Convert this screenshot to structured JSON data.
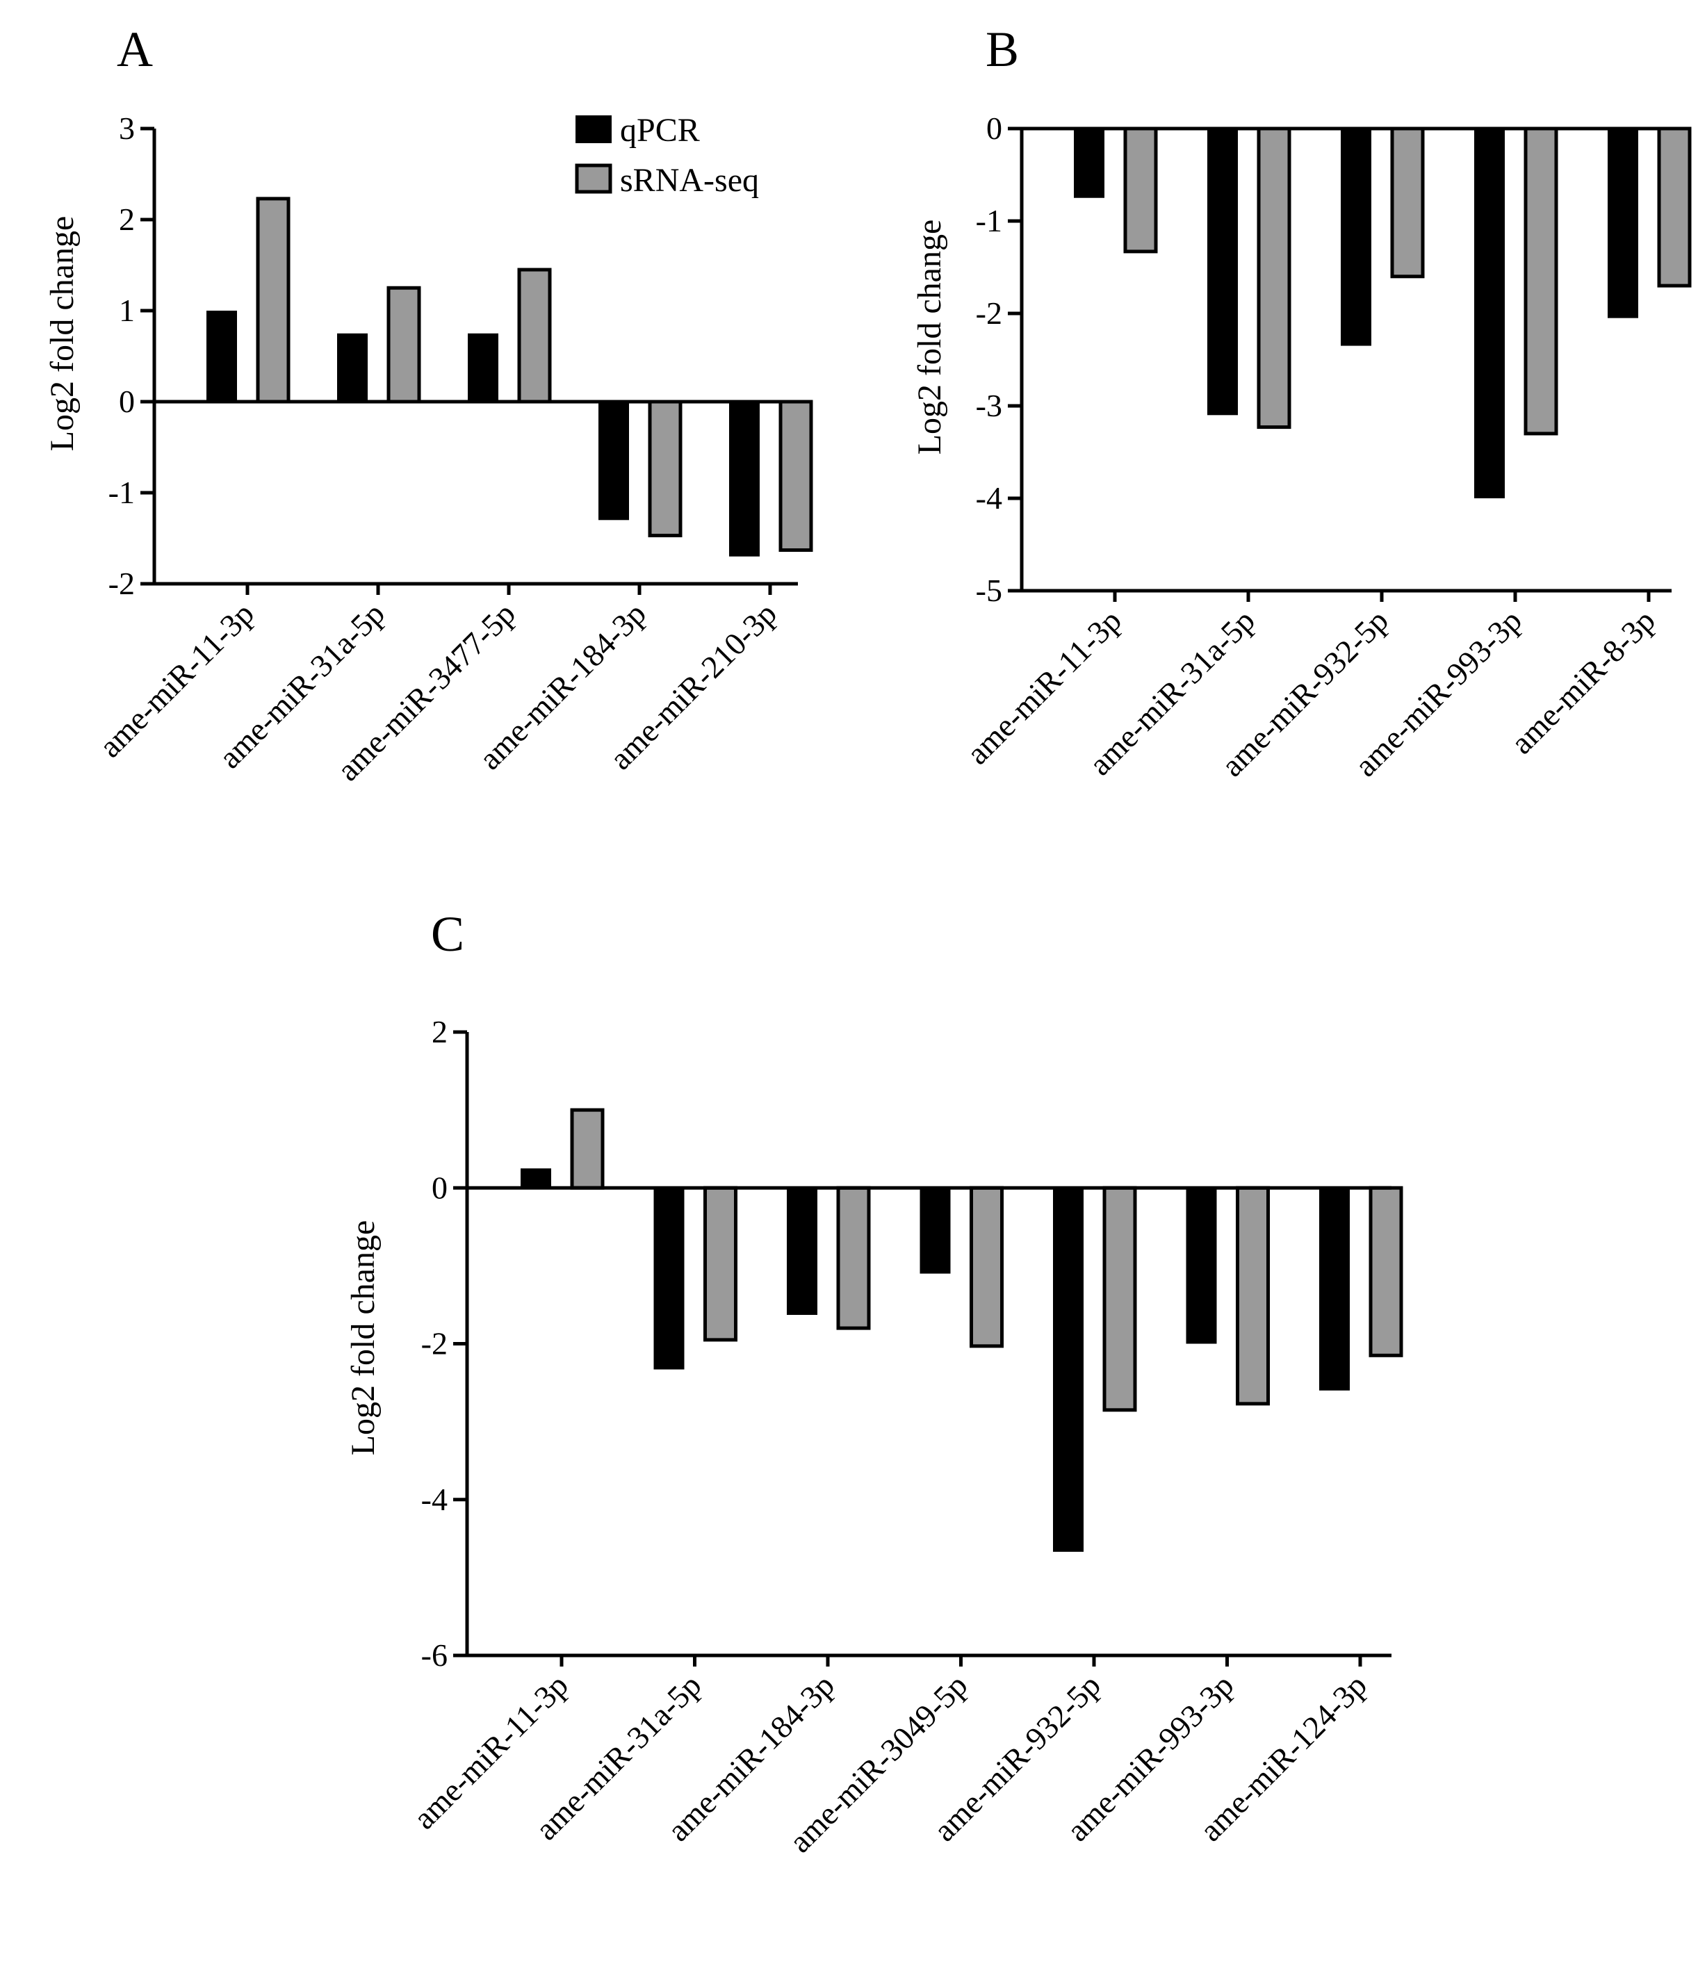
{
  "figure": {
    "legend": [
      "qPCR",
      "sRNA-seq"
    ]
  },
  "chart_data": [
    {
      "type": "bar",
      "panel": "A",
      "title": "",
      "xlabel": "",
      "ylabel": "Log2 fold change",
      "ylim": [
        -2,
        3
      ],
      "yticks": [
        3,
        2,
        1,
        0,
        -1,
        -2
      ],
      "categories": [
        "ame-miR-11-3p",
        "ame-miR-31a-5p",
        "ame-miR-3477-5p",
        "ame-miR-184-3p",
        "ame-miR-210-3p"
      ],
      "series": [
        {
          "name": "qPCR",
          "color": "#000000",
          "values": [
            1.0,
            0.75,
            0.75,
            -1.3,
            -1.7
          ]
        },
        {
          "name": "sRNA-seq",
          "color": "#9a9a9a",
          "values": [
            2.23,
            1.25,
            1.45,
            -1.47,
            -1.63
          ]
        }
      ],
      "legend": "top-right"
    },
    {
      "type": "bar",
      "panel": "B",
      "title": "",
      "xlabel": "",
      "ylabel": "Log2 fold change",
      "ylim": [
        -5,
        0
      ],
      "yticks": [
        0,
        -1,
        -2,
        -3,
        -4,
        -5
      ],
      "categories": [
        "ame-miR-11-3p",
        "ame-miR-31a-5p",
        "ame-miR-932-5p",
        "ame-miR-993-3p",
        "ame-miR-8-3p"
      ],
      "series": [
        {
          "name": "qPCR",
          "color": "#000000",
          "values": [
            -0.75,
            -3.1,
            -2.35,
            -4.0,
            -2.05
          ]
        },
        {
          "name": "sRNA-seq",
          "color": "#9a9a9a",
          "values": [
            -1.33,
            -3.23,
            -1.6,
            -3.3,
            -1.7
          ]
        }
      ]
    },
    {
      "type": "bar",
      "panel": "C",
      "title": "",
      "xlabel": "",
      "ylabel": "Log2 fold change",
      "ylim": [
        -6,
        2
      ],
      "yticks": [
        2,
        0,
        -2,
        -4,
        -6
      ],
      "categories": [
        "ame-miR-11-3p",
        "ame-miR-31a-5p",
        "ame-miR-184-3p",
        "ame-miR-3049-5p",
        "ame-miR-932-5p",
        "ame-miR-993-3p",
        "ame-miR-124-3p"
      ],
      "series": [
        {
          "name": "qPCR",
          "color": "#000000",
          "values": [
            0.25,
            -2.33,
            -1.63,
            -1.1,
            -4.67,
            -2.0,
            -2.6
          ]
        },
        {
          "name": "sRNA-seq",
          "color": "#9a9a9a",
          "values": [
            1.0,
            -1.95,
            -1.8,
            -2.03,
            -2.85,
            -2.77,
            -2.15
          ]
        }
      ]
    }
  ]
}
